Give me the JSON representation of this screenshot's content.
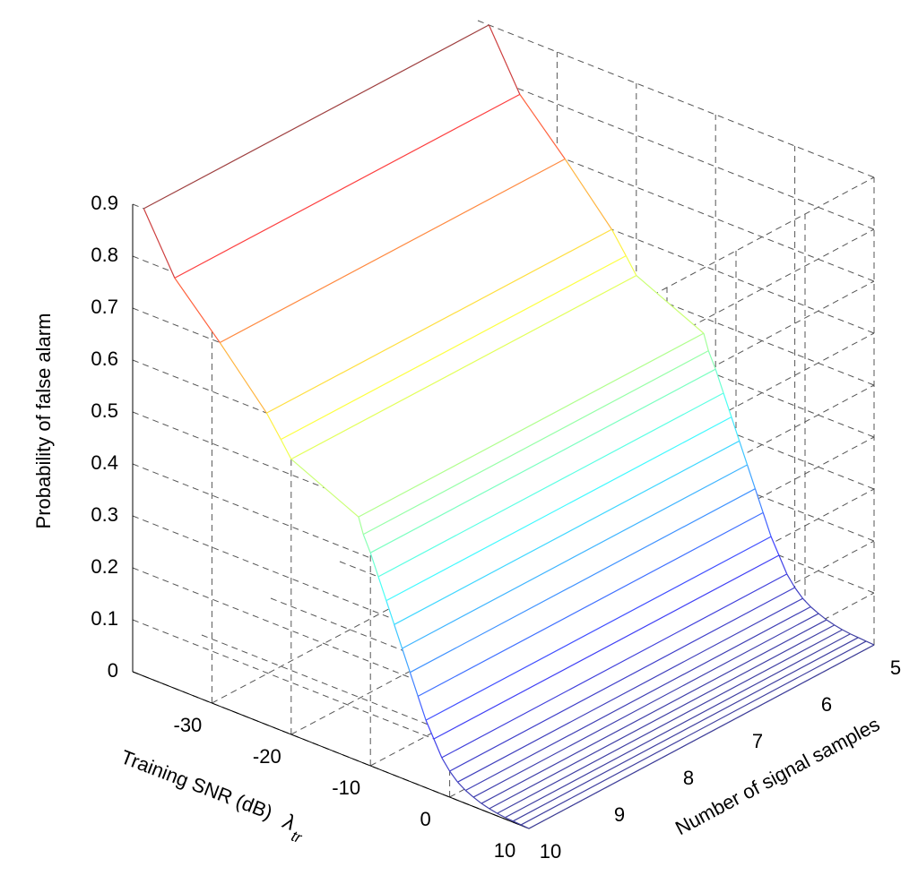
{
  "chart_data": {
    "type": "mesh3d",
    "xlabel": "Training SNR (dB)",
    "xlabel_symbol": "λ",
    "xlabel_subscript": "tr",
    "ylabel": "Number of signal samples",
    "zlabel": "Probability of false alarm",
    "x": [
      -38.6,
      -34.7,
      -29,
      -23.1,
      -21.3,
      -20,
      -11.5,
      -10.9,
      -10,
      -9,
      -8,
      -7,
      -6,
      -5,
      -4,
      -3,
      -2,
      -1,
      0,
      1,
      2,
      3,
      4,
      5,
      6,
      7,
      8,
      9,
      10
    ],
    "z": [
      0.9,
      0.79,
      0.7,
      0.6,
      0.56,
      0.53,
      0.47,
      0.44,
      0.41,
      0.37,
      0.33,
      0.29,
      0.25,
      0.21,
      0.17,
      0.13,
      0.1,
      0.07,
      0.05,
      0.035,
      0.025,
      0.018,
      0.012,
      0.008,
      0.005,
      0.003,
      0.002,
      0.001,
      0
    ],
    "ylim": [
      5,
      10
    ],
    "xlim": [
      -40,
      10
    ],
    "zlim": [
      0,
      0.9
    ],
    "xticks": [
      -30,
      -20,
      -10,
      0,
      10
    ],
    "yticks": [
      5,
      6,
      7,
      8,
      9,
      10
    ],
    "zticks": [
      0,
      0.1,
      0.2,
      0.3,
      0.4,
      0.5,
      0.6,
      0.7,
      0.8,
      0.9
    ],
    "colormap": "jet",
    "grid": true
  }
}
